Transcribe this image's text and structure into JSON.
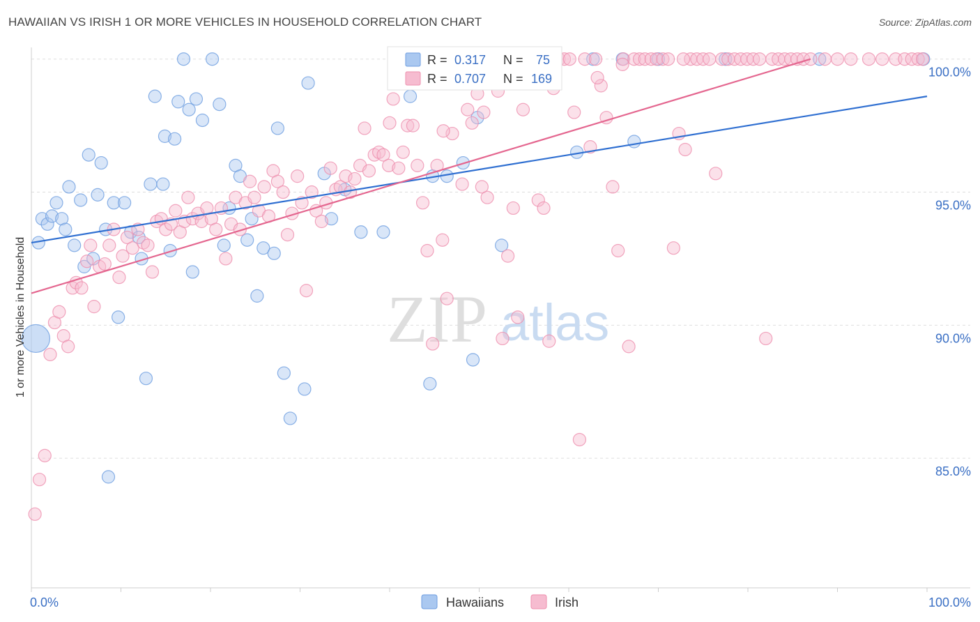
{
  "header": {
    "title": "HAWAIIAN VS IRISH 1 OR MORE VEHICLES IN HOUSEHOLD CORRELATION CHART",
    "source": "Source: ZipAtlas.com"
  },
  "watermark": {
    "zip": "ZIP",
    "atlas": "atlas"
  },
  "stats_legend": {
    "rows": [
      {
        "r_label": "R =",
        "r_value": "0.317",
        "n_label": "N =",
        "n_value": "75",
        "color": "#6d9de0"
      },
      {
        "r_label": "R =",
        "r_value": "0.707",
        "n_label": "N =",
        "n_value": "169",
        "color": "#ee8fae"
      }
    ]
  },
  "bottom_legend": {
    "items": [
      "Hawaiians",
      "Irish"
    ]
  },
  "colors": {
    "blue_fill": "#aac8f0",
    "blue_stroke": "#6d9de0",
    "blue_line": "#2f6fd1",
    "pink_fill": "#f6bcd0",
    "pink_stroke": "#ee8fae",
    "pink_line": "#e4668f",
    "value_text": "#3a6fc4",
    "grid": "#dddddd"
  },
  "chart_data": {
    "type": "scatter",
    "xlabel": "",
    "ylabel": "1 or more Vehicles in Household",
    "xlim": [
      0,
      100
    ],
    "ylim": [
      80,
      100.7
    ],
    "x_tick_labels": [
      {
        "value": 0,
        "label": "0.0%"
      },
      {
        "value": 100,
        "label": "100.0%"
      }
    ],
    "y_ticks": [
      {
        "value": 85,
        "label": "85.0%"
      },
      {
        "value": 90,
        "label": "90.0%"
      },
      {
        "value": 95,
        "label": "95.0%"
      },
      {
        "value": 100,
        "label": "100.0%"
      }
    ],
    "series": [
      {
        "name": "Hawaiians",
        "trend": {
          "x": [
            0,
            100
          ],
          "y": [
            93.1,
            98.6
          ]
        },
        "points": [
          [
            0.5,
            89.5
          ],
          [
            0.8,
            93.1
          ],
          [
            1.2,
            94.0
          ],
          [
            1.8,
            93.8
          ],
          [
            2.3,
            94.1
          ],
          [
            2.8,
            94.6
          ],
          [
            3.4,
            94.0
          ],
          [
            3.8,
            93.6
          ],
          [
            4.2,
            95.2
          ],
          [
            4.8,
            93.0
          ],
          [
            5.5,
            94.7
          ],
          [
            5.9,
            92.2
          ],
          [
            6.4,
            96.4
          ],
          [
            6.9,
            92.5
          ],
          [
            7.4,
            94.9
          ],
          [
            7.8,
            96.1
          ],
          [
            8.3,
            93.6
          ],
          [
            8.6,
            84.3
          ],
          [
            9.2,
            94.6
          ],
          [
            9.7,
            90.3
          ],
          [
            10.4,
            94.6
          ],
          [
            11.1,
            93.5
          ],
          [
            12.0,
            93.3
          ],
          [
            12.3,
            92.5
          ],
          [
            12.8,
            88.0
          ],
          [
            13.3,
            95.3
          ],
          [
            13.8,
            98.6
          ],
          [
            14.7,
            95.3
          ],
          [
            14.9,
            97.1
          ],
          [
            15.5,
            92.8
          ],
          [
            16.0,
            97.0
          ],
          [
            16.4,
            98.4
          ],
          [
            17.0,
            100.0
          ],
          [
            17.6,
            98.1
          ],
          [
            18.0,
            92.0
          ],
          [
            18.4,
            98.5
          ],
          [
            19.1,
            97.7
          ],
          [
            20.2,
            100.0
          ],
          [
            21.0,
            98.3
          ],
          [
            21.5,
            93.0
          ],
          [
            22.1,
            94.4
          ],
          [
            22.8,
            96.0
          ],
          [
            23.3,
            95.6
          ],
          [
            24.1,
            93.2
          ],
          [
            24.6,
            94.0
          ],
          [
            25.2,
            91.1
          ],
          [
            25.9,
            92.9
          ],
          [
            27.1,
            92.7
          ],
          [
            27.5,
            97.4
          ],
          [
            28.2,
            88.2
          ],
          [
            28.9,
            86.5
          ],
          [
            30.5,
            87.6
          ],
          [
            30.9,
            99.1
          ],
          [
            32.7,
            95.7
          ],
          [
            33.5,
            94.0
          ],
          [
            35.0,
            95.1
          ],
          [
            36.8,
            93.5
          ],
          [
            39.3,
            93.5
          ],
          [
            42.3,
            98.6
          ],
          [
            44.5,
            87.8
          ],
          [
            44.8,
            95.6
          ],
          [
            46.4,
            95.6
          ],
          [
            47.3,
            100.0
          ],
          [
            48.2,
            96.1
          ],
          [
            49.3,
            88.7
          ],
          [
            49.8,
            97.8
          ],
          [
            52.5,
            93.0
          ],
          [
            60.9,
            96.5
          ],
          [
            62.7,
            100.0
          ],
          [
            66.0,
            100.0
          ],
          [
            67.3,
            96.9
          ],
          [
            70.0,
            100.0
          ],
          [
            77.5,
            100.0
          ],
          [
            88.0,
            100.0
          ],
          [
            99.6,
            100.0
          ]
        ]
      },
      {
        "name": "Irish",
        "trend": {
          "x": [
            0,
            87
          ],
          "y": [
            91.2,
            100.0
          ]
        },
        "points": [
          [
            0.4,
            82.9
          ],
          [
            0.9,
            84.2
          ],
          [
            1.5,
            85.1
          ],
          [
            2.1,
            88.9
          ],
          [
            2.6,
            90.1
          ],
          [
            3.1,
            90.5
          ],
          [
            3.6,
            89.6
          ],
          [
            4.1,
            89.2
          ],
          [
            4.6,
            91.4
          ],
          [
            5.0,
            91.6
          ],
          [
            5.6,
            91.4
          ],
          [
            6.2,
            92.4
          ],
          [
            6.6,
            93.0
          ],
          [
            7.0,
            90.7
          ],
          [
            7.6,
            92.2
          ],
          [
            8.2,
            92.3
          ],
          [
            8.7,
            93.0
          ],
          [
            9.2,
            93.6
          ],
          [
            9.8,
            91.8
          ],
          [
            10.2,
            92.6
          ],
          [
            10.7,
            93.3
          ],
          [
            11.3,
            92.9
          ],
          [
            11.9,
            93.6
          ],
          [
            12.5,
            93.1
          ],
          [
            13.0,
            93.0
          ],
          [
            13.5,
            92.0
          ],
          [
            14.0,
            93.9
          ],
          [
            14.5,
            94.0
          ],
          [
            15.0,
            93.6
          ],
          [
            15.6,
            93.8
          ],
          [
            16.1,
            94.3
          ],
          [
            16.6,
            93.5
          ],
          [
            17.1,
            93.9
          ],
          [
            17.5,
            94.8
          ],
          [
            18.0,
            94.0
          ],
          [
            18.6,
            94.2
          ],
          [
            19.0,
            93.9
          ],
          [
            19.6,
            94.4
          ],
          [
            20.1,
            94.0
          ],
          [
            20.6,
            93.6
          ],
          [
            21.2,
            94.4
          ],
          [
            21.7,
            92.5
          ],
          [
            22.3,
            93.8
          ],
          [
            22.8,
            94.8
          ],
          [
            23.3,
            93.6
          ],
          [
            23.9,
            94.6
          ],
          [
            24.4,
            95.4
          ],
          [
            24.9,
            94.8
          ],
          [
            25.4,
            94.3
          ],
          [
            26.0,
            95.2
          ],
          [
            26.5,
            94.1
          ],
          [
            27.0,
            95.8
          ],
          [
            27.5,
            95.4
          ],
          [
            28.1,
            95.0
          ],
          [
            28.6,
            93.4
          ],
          [
            29.1,
            94.2
          ],
          [
            29.7,
            95.6
          ],
          [
            30.2,
            94.6
          ],
          [
            30.7,
            91.3
          ],
          [
            31.3,
            95.0
          ],
          [
            31.8,
            94.3
          ],
          [
            32.4,
            93.9
          ],
          [
            32.9,
            94.6
          ],
          [
            33.4,
            95.9
          ],
          [
            34.0,
            95.1
          ],
          [
            34.5,
            95.2
          ],
          [
            35.1,
            95.6
          ],
          [
            35.6,
            95.0
          ],
          [
            36.1,
            95.5
          ],
          [
            36.7,
            96.0
          ],
          [
            37.2,
            97.4
          ],
          [
            37.7,
            95.8
          ],
          [
            38.3,
            96.4
          ],
          [
            38.8,
            96.5
          ],
          [
            39.3,
            96.4
          ],
          [
            39.9,
            96.0
          ],
          [
            40.4,
            98.5
          ],
          [
            41.0,
            95.9
          ],
          [
            41.5,
            96.5
          ],
          [
            42.0,
            97.5
          ],
          [
            42.6,
            97.5
          ],
          [
            43.1,
            96.0
          ],
          [
            43.7,
            94.6
          ],
          [
            44.2,
            92.8
          ],
          [
            44.8,
            89.3
          ],
          [
            45.3,
            96.0
          ],
          [
            45.9,
            93.2
          ],
          [
            46.4,
            91.0
          ],
          [
            47.0,
            97.2
          ],
          [
            47.5,
            100.0
          ],
          [
            48.1,
            95.3
          ],
          [
            48.7,
            98.1
          ],
          [
            49.2,
            97.6
          ],
          [
            49.8,
            98.7
          ],
          [
            50.3,
            95.2
          ],
          [
            50.9,
            94.8
          ],
          [
            51.4,
            99.3
          ],
          [
            52.1,
            98.8
          ],
          [
            52.6,
            89.5
          ],
          [
            53.2,
            92.6
          ],
          [
            53.8,
            94.4
          ],
          [
            54.3,
            90.3
          ],
          [
            54.9,
            98.1
          ],
          [
            55.4,
            100.0
          ],
          [
            56.0,
            100.0
          ],
          [
            56.6,
            94.7
          ],
          [
            57.2,
            94.4
          ],
          [
            57.8,
            89.4
          ],
          [
            58.3,
            98.9
          ],
          [
            58.9,
            100.0
          ],
          [
            59.5,
            100.0
          ],
          [
            60.1,
            100.0
          ],
          [
            60.6,
            98.0
          ],
          [
            61.2,
            85.7
          ],
          [
            61.8,
            100.0
          ],
          [
            62.4,
            96.7
          ],
          [
            63.0,
            100.0
          ],
          [
            63.6,
            99.0
          ],
          [
            64.2,
            97.8
          ],
          [
            64.9,
            95.2
          ],
          [
            65.5,
            92.8
          ],
          [
            66.1,
            100.0
          ],
          [
            66.7,
            89.2
          ],
          [
            67.3,
            100.0
          ],
          [
            67.9,
            100.0
          ],
          [
            68.5,
            100.0
          ],
          [
            69.2,
            100.0
          ],
          [
            69.8,
            100.0
          ],
          [
            70.5,
            100.0
          ],
          [
            71.1,
            100.0
          ],
          [
            71.7,
            92.9
          ],
          [
            72.3,
            97.2
          ],
          [
            73.0,
            96.6
          ],
          [
            73.6,
            100.0
          ],
          [
            74.3,
            100.0
          ],
          [
            75.0,
            100.0
          ],
          [
            75.7,
            100.0
          ],
          [
            76.4,
            95.7
          ],
          [
            77.1,
            100.0
          ],
          [
            77.8,
            100.0
          ],
          [
            78.5,
            100.0
          ],
          [
            79.2,
            100.0
          ],
          [
            79.9,
            100.0
          ],
          [
            80.6,
            100.0
          ],
          [
            81.3,
            100.0
          ],
          [
            82.0,
            89.5
          ],
          [
            82.7,
            100.0
          ],
          [
            83.4,
            100.0
          ],
          [
            84.1,
            100.0
          ],
          [
            84.8,
            100.0
          ],
          [
            85.5,
            100.0
          ],
          [
            86.2,
            100.0
          ],
          [
            87.0,
            100.0
          ],
          [
            88.6,
            100.0
          ],
          [
            90.0,
            100.0
          ],
          [
            91.5,
            100.0
          ],
          [
            93.5,
            100.0
          ],
          [
            95.0,
            100.0
          ],
          [
            96.5,
            100.0
          ],
          [
            97.5,
            100.0
          ],
          [
            98.3,
            100.0
          ],
          [
            99.0,
            100.0
          ],
          [
            99.5,
            100.0
          ],
          [
            66.0,
            99.8
          ],
          [
            72.8,
            100.0
          ],
          [
            50.5,
            98.0
          ],
          [
            46.0,
            97.3
          ],
          [
            40.0,
            97.6
          ],
          [
            63.2,
            99.3
          ]
        ]
      }
    ]
  }
}
